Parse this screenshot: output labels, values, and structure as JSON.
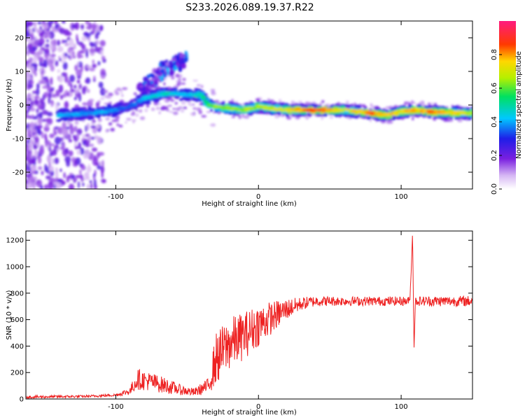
{
  "figure_title": "S233.2026.089.19.37.R22",
  "colors": {
    "snr_line": "#ee2222",
    "background": "#ffffff",
    "axis": "#000000"
  },
  "chart_data": [
    {
      "type": "heatmap",
      "xlabel": "Height of straight line (km)",
      "ylabel": "Frequency (Hz)",
      "xlim": [
        -163,
        150
      ],
      "ylim": [
        -25,
        25
      ],
      "xticks": [
        -100,
        0,
        100
      ],
      "yticks": [
        -20,
        -10,
        0,
        10,
        20
      ],
      "xtick_labels": [
        "-100",
        "0",
        "100"
      ],
      "ytick_labels": [
        "-20",
        "-10",
        "0",
        "10",
        "20"
      ],
      "colorbar": {
        "label": "Normalized spectral amplitude",
        "range": [
          0.0,
          1.0
        ],
        "ticks": [
          0.0,
          0.2,
          0.4,
          0.6,
          0.8
        ],
        "tick_labels": [
          "0.0",
          "0.2",
          "0.4",
          "0.6",
          "0.8"
        ],
        "colormap": "rainbow (white-violet-blue-cyan-green-yellow-red-magenta)"
      },
      "ridge": {
        "description": "Dominant spectral line frequency vs height",
        "x": [
          -135,
          -120,
          -110,
          -100,
          -90,
          -80,
          -70,
          -60,
          -50,
          -40,
          -35,
          -30,
          -20,
          -10,
          0,
          10,
          20,
          40,
          60,
          80,
          90,
          100,
          110,
          120,
          150
        ],
        "y": [
          -3,
          -2.5,
          -2,
          -1.5,
          -0.5,
          2,
          3,
          3.5,
          3,
          3,
          0,
          -0.5,
          -1,
          -1.5,
          -0.5,
          -1,
          -1.5,
          -1.5,
          -1.5,
          -2.5,
          -3,
          -2,
          -1.5,
          -2,
          -2.5
        ],
        "amplitude": [
          0.45,
          0.4,
          0.45,
          0.4,
          0.35,
          0.45,
          0.5,
          0.5,
          0.45,
          0.55,
          0.6,
          0.7,
          0.65,
          0.7,
          0.7,
          0.75,
          0.8,
          0.95,
          0.75,
          0.9,
          0.85,
          0.8,
          0.85,
          0.9,
          0.7
        ]
      },
      "upper_branch": {
        "description": "Secondary rising feature above ridge",
        "x": [
          -85,
          -80,
          -75,
          -70,
          -65,
          -60,
          -55,
          -50
        ],
        "y": [
          3,
          5,
          7,
          9,
          11,
          12,
          13,
          14
        ]
      }
    },
    {
      "type": "line",
      "xlabel": "Height of straight line (km)",
      "ylabel": "SNR (10 * v/v)",
      "xlim": [
        -163,
        150
      ],
      "ylim": [
        0,
        1270
      ],
      "xticks": [
        -100,
        0,
        100
      ],
      "yticks": [
        0,
        200,
        400,
        600,
        800,
        1000,
        1200
      ],
      "xtick_labels": [
        "-100",
        "0",
        "100"
      ],
      "ytick_labels": [
        "0",
        "200",
        "400",
        "600",
        "800",
        "1000",
        "1200"
      ],
      "series": [
        {
          "name": "SNR",
          "envelope_x": [
            -163,
            -120,
            -100,
            -90,
            -85,
            -75,
            -65,
            -55,
            -45,
            -35,
            -30,
            -20,
            -10,
            0,
            10,
            20,
            30,
            40,
            60,
            80,
            100,
            106,
            107,
            108,
            109,
            110,
            120,
            150
          ],
          "envelope_y": [
            15,
            20,
            30,
            60,
            150,
            130,
            100,
            70,
            50,
            100,
            300,
            420,
            480,
            560,
            620,
            680,
            720,
            740,
            740,
            740,
            740,
            740,
            950,
            1270,
            380,
            740,
            740,
            740
          ],
          "noise_amplitude": [
            10,
            10,
            10,
            30,
            80,
            70,
            60,
            40,
            30,
            60,
            200,
            200,
            180,
            160,
            120,
            80,
            50,
            40,
            35,
            35,
            35,
            35,
            0,
            0,
            0,
            35,
            40,
            40
          ]
        }
      ]
    }
  ]
}
